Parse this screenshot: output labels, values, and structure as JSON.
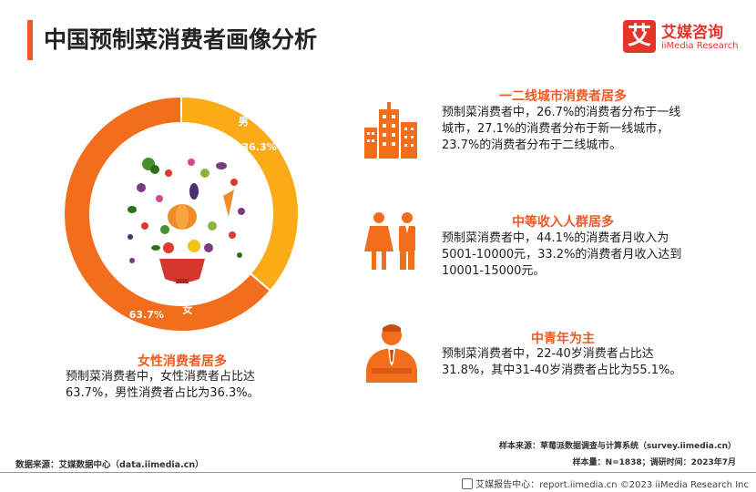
{
  "header": {
    "title": "中国预制菜消费者画像分析",
    "logo_mark": "艾",
    "logo_name": "艾媒咨询",
    "logo_en": "iiMedia Research"
  },
  "chart_data": {
    "type": "pie",
    "donut": true,
    "categories": [
      "男",
      "女"
    ],
    "values": [
      36.3,
      63.7
    ],
    "value_labels": [
      "36.3%",
      "63.7%"
    ],
    "colors": [
      "#fbab18",
      "#f26e1c"
    ]
  },
  "gender": {
    "heading": "女性消费者居多",
    "body": "预制菜消费者中，女性消费者占比达63.7%，男性消费者占比为36.3%。"
  },
  "city": {
    "heading": "一二线城市消费者居多",
    "body": "预制菜消费者中，26.7%的消费者分布于一线城市，27.1%的消费者分布于新一线城市，23.7%的消费者分布于二线城市。"
  },
  "income": {
    "heading": "中等收入人群居多",
    "body": "预制菜消费者中，44.1%的消费者月收入为5001-10000元，33.2%的消费者月收入达到10001-15000元。"
  },
  "age": {
    "heading": "中青年为主",
    "body": "预制菜消费者中，22-40岁消费者占比达31.8%，其中31-40岁消费者占比为55.1%。"
  },
  "sources": {
    "sample_source": "样本来源：草莓派数据调查与计算系统（survey.iimedia.cn）",
    "sample_info": "样本量：N=1838；调研时间：2023年7月",
    "data_source": "数据来源：艾媒数据中心（data.iimedia.cn）"
  },
  "footer": {
    "text": "艾媒报告中心：report.iimedia.cn  ©2023  iiMedia Research  Inc"
  },
  "colors": {
    "accent": "#f15a24",
    "male": "#fbab18",
    "female": "#f26e1c"
  },
  "icons": [
    "city-buildings-icon",
    "people-icon",
    "businessman-icon",
    "vegetables-bowl-icon"
  ]
}
